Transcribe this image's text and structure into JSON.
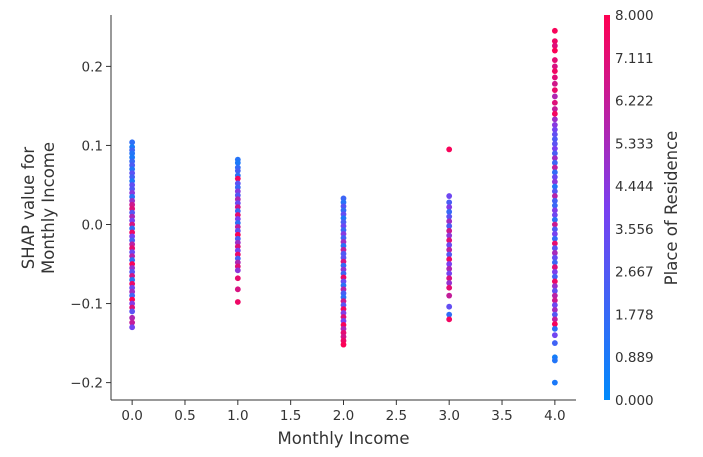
{
  "chart_data": {
    "type": "scatter",
    "xlabel": "Monthly Income",
    "ylabel_lines": [
      "SHAP value for",
      "Monthly Income"
    ],
    "xlim": [
      -0.2,
      4.2
    ],
    "ylim": [
      -0.222,
      0.265
    ],
    "x_ticks": [
      0.0,
      0.5,
      1.0,
      1.5,
      2.0,
      2.5,
      3.0,
      3.5,
      4.0
    ],
    "x_tick_labels": [
      "0.0",
      "0.5",
      "1.0",
      "1.5",
      "2.0",
      "2.5",
      "3.0",
      "3.5",
      "4.0"
    ],
    "y_ticks": [
      0.2,
      0.1,
      0.0,
      -0.1,
      -0.2
    ],
    "y_tick_labels": [
      "0.2",
      "0.1",
      "0.0",
      "−0.1",
      "−0.2"
    ],
    "grid": false,
    "colorbar": {
      "label": "Place of Residence",
      "min": 0.0,
      "max": 8.0,
      "tick_labels": [
        "8.000",
        "7.111",
        "6.222",
        "5.333",
        "4.444",
        "3.556",
        "2.667",
        "1.778",
        "0.889",
        "0.000"
      ],
      "colors": [
        "#008afb",
        "#7a3ff0",
        "#ff0052"
      ]
    },
    "groups": [
      {
        "x": 0.0,
        "points": [
          [
            0.104,
            1.5
          ],
          [
            0.098,
            0.8
          ],
          [
            0.094,
            2.0
          ],
          [
            0.09,
            1.2
          ],
          [
            0.085,
            0.9
          ],
          [
            0.08,
            1.8
          ],
          [
            0.075,
            2.5
          ],
          [
            0.07,
            1.1
          ],
          [
            0.065,
            3.0
          ],
          [
            0.06,
            2.2
          ],
          [
            0.055,
            1.0
          ],
          [
            0.05,
            3.2
          ],
          [
            0.045,
            2.6
          ],
          [
            0.04,
            4.5
          ],
          [
            0.035,
            1.4
          ],
          [
            0.03,
            5.0
          ],
          [
            0.025,
            6.5
          ],
          [
            0.02,
            7.0
          ],
          [
            0.015,
            2.8
          ],
          [
            0.01,
            5.5
          ],
          [
            0.005,
            3.8
          ],
          [
            0.0,
            6.8
          ],
          [
            -0.005,
            1.7
          ],
          [
            -0.01,
            7.5
          ],
          [
            -0.015,
            4.0
          ],
          [
            -0.02,
            2.3
          ],
          [
            -0.025,
            6.0
          ],
          [
            -0.03,
            7.2
          ],
          [
            -0.035,
            3.4
          ],
          [
            -0.04,
            5.8
          ],
          [
            -0.045,
            1.6
          ],
          [
            -0.05,
            7.8
          ],
          [
            -0.055,
            4.8
          ],
          [
            -0.06,
            2.9
          ],
          [
            -0.065,
            6.6
          ],
          [
            -0.07,
            1.3
          ],
          [
            -0.075,
            7.4
          ],
          [
            -0.08,
            3.6
          ],
          [
            -0.085,
            5.2
          ],
          [
            -0.09,
            2.1
          ],
          [
            -0.095,
            7.9
          ],
          [
            -0.1,
            4.2
          ],
          [
            -0.105,
            7.0
          ],
          [
            -0.11,
            3.0
          ],
          [
            -0.118,
            5.6
          ],
          [
            -0.124,
            6.2
          ],
          [
            -0.13,
            3.8
          ]
        ]
      },
      {
        "x": 1.0,
        "points": [
          [
            0.082,
            1.2
          ],
          [
            0.078,
            0.9
          ],
          [
            0.072,
            1.6
          ],
          [
            0.068,
            2.2
          ],
          [
            0.062,
            1.4
          ],
          [
            0.058,
            7.6
          ],
          [
            0.052,
            3.0
          ],
          [
            0.047,
            1.9
          ],
          [
            0.042,
            4.4
          ],
          [
            0.037,
            2.7
          ],
          [
            0.032,
            5.6
          ],
          [
            0.027,
            3.4
          ],
          [
            0.022,
            6.6
          ],
          [
            0.017,
            2.0
          ],
          [
            0.012,
            7.2
          ],
          [
            0.007,
            4.0
          ],
          [
            0.002,
            1.5
          ],
          [
            -0.003,
            6.0
          ],
          [
            -0.008,
            3.2
          ],
          [
            -0.013,
            7.8
          ],
          [
            -0.018,
            2.5
          ],
          [
            -0.023,
            5.0
          ],
          [
            -0.028,
            6.9
          ],
          [
            -0.033,
            3.8
          ],
          [
            -0.038,
            7.4
          ],
          [
            -0.043,
            2.3
          ],
          [
            -0.048,
            5.5
          ],
          [
            -0.053,
            7.0
          ],
          [
            -0.058,
            4.6
          ],
          [
            -0.068,
            7.3
          ],
          [
            -0.082,
            6.8
          ],
          [
            -0.098,
            7.5
          ]
        ]
      },
      {
        "x": 2.0,
        "points": [
          [
            0.033,
            2.0
          ],
          [
            0.028,
            1.2
          ],
          [
            0.023,
            2.8
          ],
          [
            0.018,
            1.6
          ],
          [
            0.013,
            3.2
          ],
          [
            0.008,
            1.0
          ],
          [
            0.003,
            2.4
          ],
          [
            -0.002,
            3.6
          ],
          [
            -0.007,
            1.8
          ],
          [
            -0.012,
            4.4
          ],
          [
            -0.017,
            2.2
          ],
          [
            -0.022,
            5.2
          ],
          [
            -0.027,
            1.4
          ],
          [
            -0.032,
            6.0
          ],
          [
            -0.037,
            2.6
          ],
          [
            -0.042,
            3.0
          ],
          [
            -0.047,
            6.8
          ],
          [
            -0.052,
            1.7
          ],
          [
            -0.057,
            4.8
          ],
          [
            -0.062,
            2.0
          ],
          [
            -0.067,
            7.4
          ],
          [
            -0.072,
            3.4
          ],
          [
            -0.077,
            1.3
          ],
          [
            -0.082,
            5.8
          ],
          [
            -0.087,
            2.3
          ],
          [
            -0.092,
            1.5
          ],
          [
            -0.097,
            6.4
          ],
          [
            -0.102,
            2.9
          ],
          [
            -0.107,
            7.6
          ],
          [
            -0.112,
            4.2
          ],
          [
            -0.117,
            7.0
          ],
          [
            -0.122,
            3.8
          ],
          [
            -0.127,
            7.8
          ],
          [
            -0.132,
            5.4
          ],
          [
            -0.137,
            7.2
          ],
          [
            -0.142,
            6.6
          ],
          [
            -0.147,
            7.5
          ],
          [
            -0.152,
            7.9
          ]
        ]
      },
      {
        "x": 3.0,
        "points": [
          [
            0.095,
            7.8
          ],
          [
            0.036,
            3.6
          ],
          [
            0.028,
            2.4
          ],
          [
            0.022,
            4.2
          ],
          [
            0.016,
            1.8
          ],
          [
            0.01,
            3.0
          ],
          [
            0.004,
            5.2
          ],
          [
            -0.002,
            2.6
          ],
          [
            -0.008,
            6.4
          ],
          [
            -0.014,
            4.6
          ],
          [
            -0.02,
            7.0
          ],
          [
            -0.026,
            3.4
          ],
          [
            -0.032,
            6.0
          ],
          [
            -0.038,
            2.8
          ],
          [
            -0.044,
            7.4
          ],
          [
            -0.05,
            4.0
          ],
          [
            -0.056,
            5.6
          ],
          [
            -0.062,
            3.8
          ],
          [
            -0.068,
            6.8
          ],
          [
            -0.074,
            4.8
          ],
          [
            -0.08,
            7.2
          ],
          [
            -0.09,
            6.2
          ],
          [
            -0.104,
            3.2
          ],
          [
            -0.114,
            1.6
          ],
          [
            -0.12,
            7.6
          ]
        ]
      },
      {
        "x": 4.0,
        "points": [
          [
            0.245,
            7.8
          ],
          [
            0.232,
            7.5
          ],
          [
            0.226,
            7.0
          ],
          [
            0.22,
            7.9
          ],
          [
            0.208,
            7.2
          ],
          [
            0.2,
            6.8
          ],
          [
            0.194,
            7.6
          ],
          [
            0.186,
            7.1
          ],
          [
            0.178,
            6.6
          ],
          [
            0.17,
            7.4
          ],
          [
            0.162,
            5.6
          ],
          [
            0.154,
            7.0
          ],
          [
            0.146,
            6.2
          ],
          [
            0.14,
            7.7
          ],
          [
            0.133,
            5.0
          ],
          [
            0.126,
            4.4
          ],
          [
            0.12,
            3.8
          ],
          [
            0.114,
            3.2
          ],
          [
            0.108,
            2.6
          ],
          [
            0.102,
            3.0
          ],
          [
            0.096,
            4.0
          ],
          [
            0.09,
            2.4
          ],
          [
            0.084,
            5.2
          ],
          [
            0.078,
            2.0
          ],
          [
            0.072,
            6.0
          ],
          [
            0.066,
            1.6
          ],
          [
            0.06,
            3.4
          ],
          [
            0.054,
            4.6
          ],
          [
            0.048,
            1.2
          ],
          [
            0.042,
            2.8
          ],
          [
            0.036,
            5.8
          ],
          [
            0.03,
            2.2
          ],
          [
            0.024,
            1.8
          ],
          [
            0.018,
            4.2
          ],
          [
            0.012,
            3.6
          ],
          [
            0.006,
            1.4
          ],
          [
            0.0,
            6.4
          ],
          [
            -0.006,
            2.5
          ],
          [
            -0.012,
            3.9
          ],
          [
            -0.018,
            1.7
          ],
          [
            -0.024,
            7.3
          ],
          [
            -0.03,
            2.9
          ],
          [
            -0.036,
            5.4
          ],
          [
            -0.042,
            3.3
          ],
          [
            -0.048,
            1.9
          ],
          [
            -0.054,
            6.9
          ],
          [
            -0.06,
            4.1
          ],
          [
            -0.066,
            2.3
          ],
          [
            -0.072,
            7.5
          ],
          [
            -0.078,
            4.9
          ],
          [
            -0.084,
            3.1
          ],
          [
            -0.09,
            5.9
          ],
          [
            -0.096,
            6.5
          ],
          [
            -0.102,
            3.5
          ],
          [
            -0.108,
            5.3
          ],
          [
            -0.114,
            2.7
          ],
          [
            -0.12,
            6.1
          ],
          [
            -0.126,
            7.8
          ],
          [
            -0.132,
            1.5
          ],
          [
            -0.14,
            3.7
          ],
          [
            -0.15,
            2.1
          ],
          [
            -0.168,
            0.7
          ],
          [
            -0.172,
            1.1
          ],
          [
            -0.2,
            0.9
          ]
        ]
      }
    ]
  }
}
